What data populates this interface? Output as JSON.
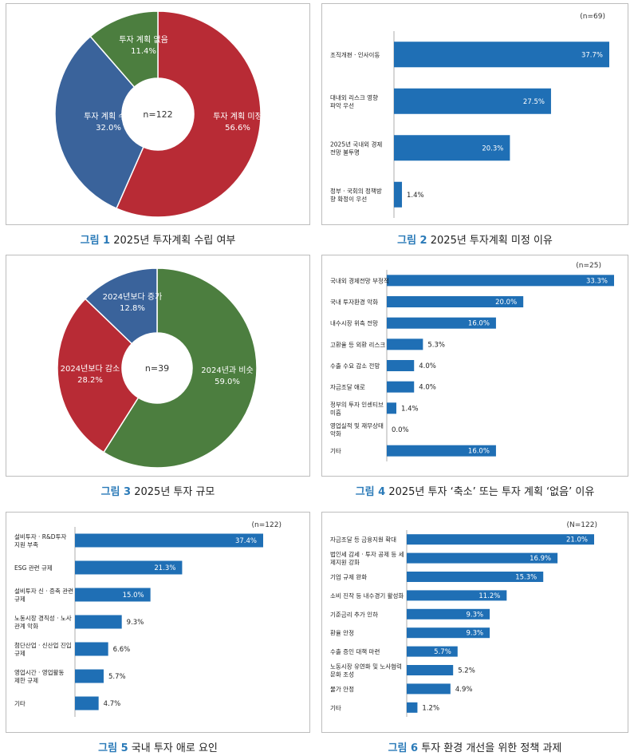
{
  "colors": {
    "bar": "#1f6fb5",
    "red": "#b82b35",
    "blue": "#3a639b",
    "green": "#4c7e3f",
    "caption_num": "#2a7ab8"
  },
  "captions": [
    {
      "num": "그림 1",
      "text": "2025년 투자계획 수립 여부"
    },
    {
      "num": "그림 2",
      "text": "2025년 투자계획 미정 이유"
    },
    {
      "num": "그림 3",
      "text": "2025년 투자 규모"
    },
    {
      "num": "그림 4",
      "text": "2025년 투자 ‘축소’ 또는 투자 계획 ‘없음’ 이유"
    },
    {
      "num": "그림 5",
      "text": "국내 투자 애로 요인"
    },
    {
      "num": "그림 6",
      "text": "투자 환경 개선을 위한 정책 과제"
    }
  ],
  "chart_data": [
    {
      "type": "pie",
      "center_label": "n=122",
      "slices": [
        {
          "label": "투자 계획 미정",
          "value": 56.6,
          "value_label": "56.6%",
          "color": "#b82b35"
        },
        {
          "label": "투자 계획 수립",
          "value": 32.0,
          "value_label": "32.0%",
          "color": "#3a639b"
        },
        {
          "label": "투자 계획 없음",
          "value": 11.4,
          "value_label": "11.4%",
          "color": "#4c7e3f"
        }
      ]
    },
    {
      "type": "bar",
      "n_label": "(n=69)",
      "categories": [
        [
          "조직개편 · 인사이동"
        ],
        [
          "대내외 리스크 영향",
          "파악 우선"
        ],
        [
          "2025년 국내외 경제",
          "전망 불투명"
        ],
        [
          "정부 · 국회의 정책방",
          "향 확정이 우선"
        ]
      ],
      "values": [
        37.7,
        27.5,
        20.3,
        1.4
      ],
      "value_labels": [
        "37.7%",
        "27.5%",
        "20.3%",
        "1.4%"
      ]
    },
    {
      "type": "pie",
      "center_label": "n=39",
      "slices": [
        {
          "label": "2024년과 비슷",
          "value": 59.0,
          "value_label": "59.0%",
          "color": "#4c7e3f"
        },
        {
          "label": "2024년보다 감소",
          "value": 28.2,
          "value_label": "28.2%",
          "color": "#b82b35"
        },
        {
          "label": "2024년보다 증가",
          "value": 12.8,
          "value_label": "12.8%",
          "color": "#3a639b"
        }
      ]
    },
    {
      "type": "bar",
      "n_label": "(n=25)",
      "categories": [
        [
          "국내외 경제전망 부정적"
        ],
        [
          "국내 투자환경 악화"
        ],
        [
          "내수시장 위축 전망"
        ],
        [
          "고환율 등 외환 리스크"
        ],
        [
          "수출 수요 감소 전망"
        ],
        [
          "자금조달 애로"
        ],
        [
          "정부의 투자 인센티브",
          "미흡"
        ],
        [
          "영업실적 및 재무상태",
          "악화"
        ],
        [
          "기타"
        ]
      ],
      "values": [
        33.3,
        20.0,
        16.0,
        5.3,
        4.0,
        4.0,
        1.4,
        0.0,
        16.0
      ],
      "value_labels": [
        "33.3%",
        "20.0%",
        "16.0%",
        "5.3%",
        "4.0%",
        "4.0%",
        "1.4%",
        "0.0%",
        "16.0%"
      ]
    },
    {
      "type": "bar",
      "n_label": "(n=122)",
      "categories": [
        [
          "설비투자 · R&D투자",
          "지원 부족"
        ],
        [
          "ESG 관련 규제"
        ],
        [
          "설비투자 신 · 증축 관련",
          "규제"
        ],
        [
          "노동시장 경직성 · 노사",
          "관계 악화"
        ],
        [
          "첨단산업 · 신산업 진입",
          "규제"
        ],
        [
          "영업시간 · 영업활동",
          "제한 규제"
        ],
        [
          "기타"
        ]
      ],
      "values": [
        37.4,
        21.3,
        15.0,
        9.3,
        6.6,
        5.7,
        4.7
      ],
      "value_labels": [
        "37.4%",
        "21.3%",
        "15.0%",
        "9.3%",
        "6.6%",
        "5.7%",
        "4.7%"
      ]
    },
    {
      "type": "bar",
      "n_label": "(N=122)",
      "categories": [
        [
          "자금조달 등 금융지원 확대"
        ],
        [
          "법인세 감세 · 투자 공제 등 세",
          "제지원 강화"
        ],
        [
          "기업 규제 완화"
        ],
        [
          "소비 진작 등 내수경기 활성화"
        ],
        [
          "기준금리 추가 인하"
        ],
        [
          "환율 안정"
        ],
        [
          "수출 증인 대책 마련"
        ],
        [
          "노동시장 유연화 및 노사협력",
          "문화 조성"
        ],
        [
          "물가 안정"
        ],
        [
          "기타"
        ]
      ],
      "values": [
        21.0,
        16.9,
        15.3,
        11.2,
        9.3,
        9.3,
        5.7,
        5.2,
        4.9,
        1.2
      ],
      "value_labels": [
        "21.0%",
        "16.9%",
        "15.3%",
        "11.2%",
        "9.3%",
        "9.3%",
        "5.7%",
        "5.2%",
        "4.9%",
        "1.2%"
      ]
    }
  ]
}
